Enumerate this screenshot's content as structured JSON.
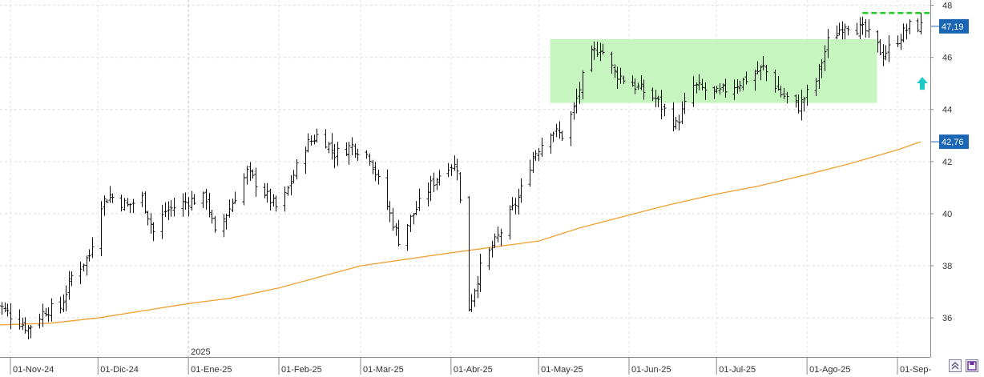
{
  "chart_data": {
    "type": "ohlc",
    "title": "",
    "xlabel": "",
    "ylabel": "",
    "ylim": [
      34.5,
      48.2
    ],
    "yticks": [
      36,
      38,
      40,
      42,
      44,
      46,
      48
    ],
    "yticks_labels": [
      "36",
      "38",
      "40",
      "42",
      "44",
      "46",
      "48"
    ],
    "grid": true,
    "year_label": "2025",
    "x_labels": [
      "01-Nov-24",
      "01-Dic-24",
      "01-Ene-25",
      "01-Feb-25",
      "01-Mar-25",
      "01-Abr-25",
      "01-May-25",
      "01-Jun-25",
      "01-Jul-25",
      "01-Ago-25",
      "01-Sep-"
    ],
    "last_price_label": "47,19",
    "last_price": 47.19,
    "ma_value_label": "42,76",
    "ma_value": 42.76,
    "consolidation_range": {
      "low": 44.25,
      "high": 46.7,
      "start": "2025-05-05",
      "end": "2025-08-25",
      "color": "#c6f5c0"
    },
    "resistance_level": {
      "value": 47.7,
      "start": "2025-08-20",
      "end": "2025-09-12",
      "color": "#22cc22"
    },
    "up_arrow_color": "#1ec9c9",
    "series": [
      {
        "kind": "moving_average",
        "color": "#f0a030",
        "points": [
          [
            "2024-10-25",
            35.72
          ],
          [
            "2024-11-15",
            35.8
          ],
          [
            "2024-12-01",
            36.0
          ],
          [
            "2025-01-01",
            36.55
          ],
          [
            "2025-01-15",
            36.75
          ],
          [
            "2025-02-01",
            37.15
          ],
          [
            "2025-03-01",
            38.0
          ],
          [
            "2025-04-01",
            38.5
          ],
          [
            "2025-05-01",
            38.95
          ],
          [
            "2025-05-15",
            39.45
          ],
          [
            "2025-06-01",
            39.95
          ],
          [
            "2025-06-15",
            40.35
          ],
          [
            "2025-07-01",
            40.75
          ],
          [
            "2025-07-15",
            41.05
          ],
          [
            "2025-08-01",
            41.5
          ],
          [
            "2025-08-15",
            41.9
          ],
          [
            "2025-09-01",
            42.45
          ],
          [
            "2025-09-09",
            42.76
          ]
        ]
      },
      {
        "kind": "ohlc",
        "color": "#111111",
        "anchors": [
          [
            "2024-10-25",
            36.8
          ],
          [
            "2024-11-02",
            36.0
          ],
          [
            "2024-11-07",
            35.6
          ],
          [
            "2024-11-13",
            36.3
          ],
          [
            "2024-11-18",
            36.4
          ],
          [
            "2024-11-22",
            37.6
          ],
          [
            "2024-11-28",
            38.4
          ],
          [
            "2024-12-02",
            40.4
          ],
          [
            "2024-12-05",
            40.7
          ],
          [
            "2024-12-11",
            40.3
          ],
          [
            "2024-12-16",
            40.6
          ],
          [
            "2024-12-20",
            39.3
          ],
          [
            "2024-12-24",
            40.1
          ],
          [
            "2025-01-01",
            40.5
          ],
          [
            "2025-01-07",
            40.6
          ],
          [
            "2025-01-10",
            39.2
          ],
          [
            "2025-01-15",
            40.2
          ],
          [
            "2025-01-21",
            41.6
          ],
          [
            "2025-01-27",
            40.8
          ],
          [
            "2025-02-01",
            40.1
          ],
          [
            "2025-02-06",
            41.5
          ],
          [
            "2025-02-10",
            42.6
          ],
          [
            "2025-02-15",
            43.1
          ],
          [
            "2025-02-20",
            42.3
          ],
          [
            "2025-02-26",
            42.6
          ],
          [
            "2025-03-04",
            42.2
          ],
          [
            "2025-03-10",
            40.3
          ],
          [
            "2025-03-14",
            39.0
          ],
          [
            "2025-03-20",
            40.2
          ],
          [
            "2025-03-25",
            41.1
          ],
          [
            "2025-03-31",
            41.9
          ],
          [
            "2025-04-03",
            41.8
          ],
          [
            "2025-04-07",
            36.4
          ],
          [
            "2025-04-11",
            37.9
          ],
          [
            "2025-04-17",
            39.1
          ],
          [
            "2025-04-24",
            40.6
          ],
          [
            "2025-04-29",
            42.2
          ],
          [
            "2025-05-05",
            43.2
          ],
          [
            "2025-05-09",
            43.0
          ],
          [
            "2025-05-13",
            44.0
          ],
          [
            "2025-05-18",
            46.0
          ],
          [
            "2025-05-22",
            46.4
          ],
          [
            "2025-05-27",
            45.4
          ],
          [
            "2025-06-03",
            44.9
          ],
          [
            "2025-06-10",
            44.4
          ],
          [
            "2025-06-17",
            43.4
          ],
          [
            "2025-06-23",
            44.9
          ],
          [
            "2025-07-01",
            44.6
          ],
          [
            "2025-07-10",
            45.1
          ],
          [
            "2025-07-17",
            45.6
          ],
          [
            "2025-07-23",
            44.6
          ],
          [
            "2025-07-29",
            44.1
          ],
          [
            "2025-08-04",
            45.1
          ],
          [
            "2025-08-08",
            46.6
          ],
          [
            "2025-08-14",
            47.3
          ],
          [
            "2025-08-21",
            47.0
          ],
          [
            "2025-08-27",
            46.1
          ],
          [
            "2025-09-01",
            46.7
          ],
          [
            "2025-09-05",
            47.2
          ],
          [
            "2025-09-09",
            47.19
          ]
        ]
      }
    ]
  },
  "corner_buttons": {
    "left_icon": "double-chevron-up-icon",
    "right_icon": "save-icon"
  }
}
